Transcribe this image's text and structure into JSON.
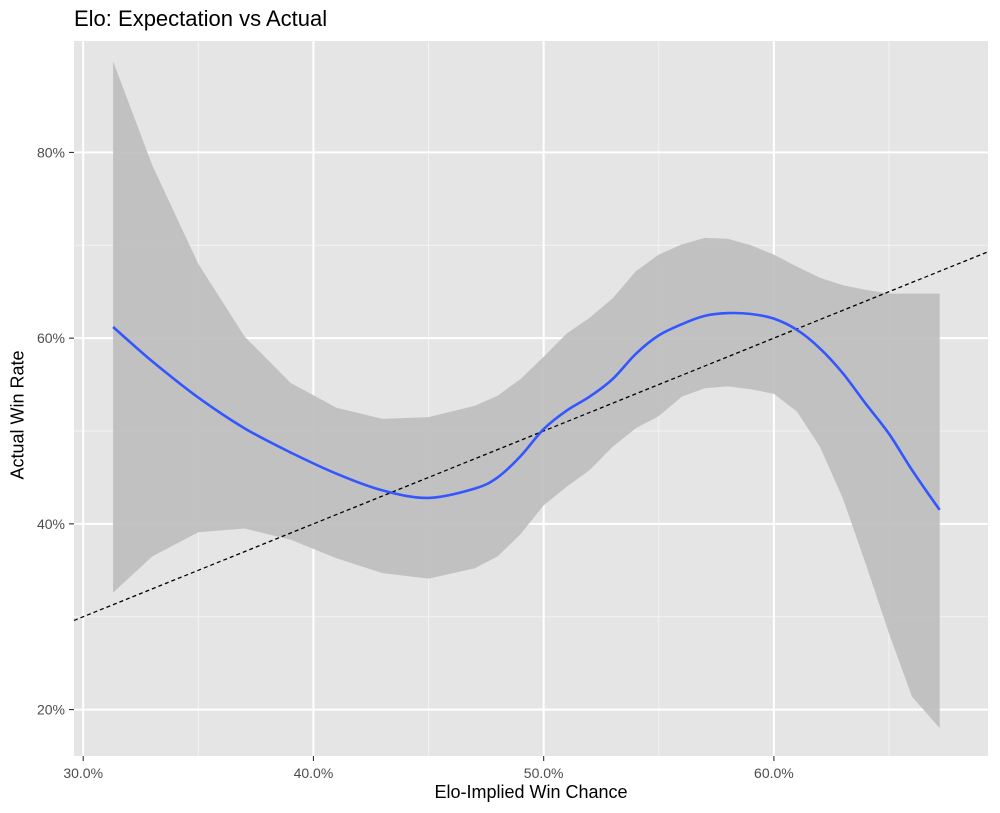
{
  "chart_data": {
    "type": "line",
    "title": "Elo: Expectation vs Actual",
    "xlabel": "Elo-Implied Win Chance",
    "ylabel": "Actual Win Rate",
    "xlim": [
      0.296,
      0.693
    ],
    "ylim": [
      0.15,
      0.92
    ],
    "x_ticks": [
      0.3,
      0.4,
      0.5,
      0.6
    ],
    "x_tick_labels": [
      "30.0%",
      "40.0%",
      "50.0%",
      "60.0%"
    ],
    "x_minor_ticks": [
      0.35,
      0.45,
      0.55,
      0.65
    ],
    "y_ticks": [
      0.2,
      0.4,
      0.6,
      0.8
    ],
    "y_tick_labels": [
      "20%",
      "40%",
      "60%",
      "80%"
    ],
    "y_minor_ticks": [
      0.3,
      0.5,
      0.7
    ],
    "grid": true,
    "background": "#e5e5e5",
    "series": [
      {
        "kind": "smooth",
        "color": "#3356ff",
        "x": [
          0.313,
          0.33,
          0.35,
          0.37,
          0.39,
          0.41,
          0.43,
          0.45,
          0.47,
          0.48,
          0.49,
          0.5,
          0.51,
          0.52,
          0.53,
          0.54,
          0.55,
          0.56,
          0.57,
          0.58,
          0.59,
          0.6,
          0.61,
          0.62,
          0.63,
          0.64,
          0.65,
          0.66,
          0.672
        ],
        "y": [
          0.612,
          0.575,
          0.536,
          0.503,
          0.477,
          0.454,
          0.436,
          0.428,
          0.438,
          0.45,
          0.473,
          0.502,
          0.522,
          0.537,
          0.556,
          0.583,
          0.603,
          0.615,
          0.624,
          0.627,
          0.626,
          0.621,
          0.609,
          0.589,
          0.562,
          0.529,
          0.497,
          0.458,
          0.415
        ]
      }
    ],
    "band": {
      "color": "#bebebe",
      "x": [
        0.313,
        0.33,
        0.35,
        0.37,
        0.39,
        0.41,
        0.43,
        0.45,
        0.47,
        0.48,
        0.49,
        0.5,
        0.51,
        0.52,
        0.53,
        0.54,
        0.55,
        0.56,
        0.57,
        0.58,
        0.59,
        0.6,
        0.61,
        0.62,
        0.63,
        0.64,
        0.65,
        0.66,
        0.672
      ],
      "upper": [
        0.898,
        0.786,
        0.68,
        0.602,
        0.552,
        0.525,
        0.513,
        0.515,
        0.527,
        0.538,
        0.556,
        0.58,
        0.605,
        0.622,
        0.643,
        0.672,
        0.69,
        0.701,
        0.708,
        0.707,
        0.7,
        0.69,
        0.677,
        0.665,
        0.657,
        0.652,
        0.648,
        0.648,
        0.648
      ],
      "lower": [
        0.326,
        0.365,
        0.391,
        0.395,
        0.383,
        0.363,
        0.347,
        0.341,
        0.352,
        0.365,
        0.389,
        0.42,
        0.44,
        0.458,
        0.483,
        0.503,
        0.516,
        0.537,
        0.546,
        0.548,
        0.545,
        0.54,
        0.521,
        0.483,
        0.427,
        0.356,
        0.282,
        0.214,
        0.18
      ]
    },
    "reference_line": {
      "style": "dashed",
      "color": "#000000",
      "x": [
        0.296,
        0.693
      ],
      "y": [
        0.296,
        0.693
      ]
    }
  }
}
